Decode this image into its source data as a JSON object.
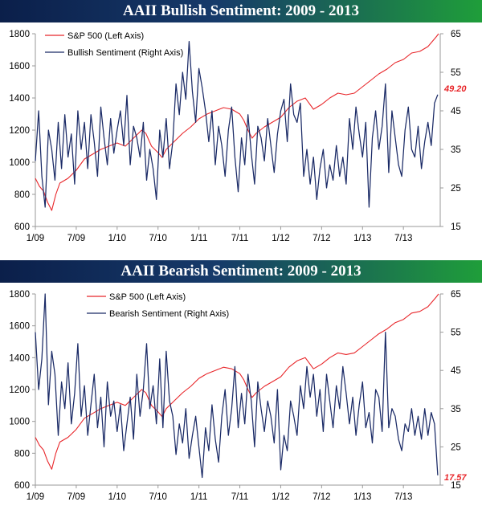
{
  "colors": {
    "banner_left": "#0b1f4a",
    "banner_right": "#1f9e3a",
    "sp500": "#e8262a",
    "sentiment": "#1a2a66",
    "axis": "#999999"
  },
  "chart_data": [
    {
      "type": "line",
      "title": "AAII Bullish Sentiment: 2009 - 2013",
      "x_tick_labels": [
        "1/09",
        "7/09",
        "1/10",
        "7/10",
        "1/11",
        "7/11",
        "1/12",
        "7/12",
        "1/13",
        "7/13"
      ],
      "y_left_ticks": [
        600,
        800,
        1000,
        1200,
        1400,
        1600,
        1800
      ],
      "y_right_ticks": [
        15,
        25,
        35,
        45,
        55,
        65
      ],
      "y_left_range": [
        600,
        1800
      ],
      "y_right_range": [
        15,
        65
      ],
      "x_range": [
        2009.0,
        2013.95
      ],
      "legend_position": "top-left",
      "grid": false,
      "end_label": "49.20",
      "series": [
        {
          "name": "S&P 500 (Left Axis)",
          "axis": "left",
          "color": "#e8262a",
          "x": [
            2009.0,
            2009.05,
            2009.1,
            2009.15,
            2009.2,
            2009.25,
            2009.3,
            2009.4,
            2009.5,
            2009.6,
            2009.7,
            2009.8,
            2009.9,
            2010.0,
            2010.1,
            2010.2,
            2010.3,
            2010.35,
            2010.42,
            2010.5,
            2010.55,
            2010.6,
            2010.7,
            2010.8,
            2010.9,
            2011.0,
            2011.1,
            2011.2,
            2011.3,
            2011.4,
            2011.5,
            2011.55,
            2011.6,
            2011.65,
            2011.7,
            2011.8,
            2011.9,
            2012.0,
            2012.1,
            2012.2,
            2012.3,
            2012.4,
            2012.5,
            2012.6,
            2012.7,
            2012.8,
            2012.9,
            2013.0,
            2013.1,
            2013.2,
            2013.3,
            2013.4,
            2013.5,
            2013.6,
            2013.7,
            2013.8,
            2013.9,
            2013.93
          ],
          "values": [
            900,
            850,
            820,
            750,
            700,
            800,
            870,
            900,
            950,
            1020,
            1050,
            1080,
            1100,
            1120,
            1100,
            1150,
            1200,
            1180,
            1100,
            1060,
            1030,
            1080,
            1130,
            1180,
            1220,
            1270,
            1300,
            1320,
            1340,
            1330,
            1300,
            1260,
            1200,
            1150,
            1180,
            1220,
            1250,
            1280,
            1340,
            1380,
            1400,
            1330,
            1360,
            1400,
            1430,
            1420,
            1430,
            1470,
            1510,
            1550,
            1580,
            1620,
            1640,
            1680,
            1690,
            1720,
            1780,
            1800
          ]
        },
        {
          "name": "Bullish Sentiment (Right Axis)",
          "axis": "right",
          "color": "#1a2a66",
          "x": [
            2009.0,
            2009.04,
            2009.08,
            2009.12,
            2009.16,
            2009.2,
            2009.24,
            2009.28,
            2009.32,
            2009.36,
            2009.4,
            2009.44,
            2009.48,
            2009.52,
            2009.56,
            2009.6,
            2009.64,
            2009.68,
            2009.72,
            2009.76,
            2009.8,
            2009.84,
            2009.88,
            2009.92,
            2009.96,
            2010.0,
            2010.04,
            2010.08,
            2010.12,
            2010.16,
            2010.2,
            2010.24,
            2010.28,
            2010.32,
            2010.36,
            2010.4,
            2010.44,
            2010.48,
            2010.52,
            2010.56,
            2010.6,
            2010.64,
            2010.68,
            2010.72,
            2010.76,
            2010.8,
            2010.84,
            2010.88,
            2010.92,
            2010.96,
            2011.0,
            2011.04,
            2011.08,
            2011.12,
            2011.16,
            2011.2,
            2011.24,
            2011.28,
            2011.32,
            2011.36,
            2011.4,
            2011.44,
            2011.48,
            2011.52,
            2011.56,
            2011.6,
            2011.64,
            2011.68,
            2011.72,
            2011.76,
            2011.8,
            2011.84,
            2011.88,
            2011.92,
            2011.96,
            2012.0,
            2012.04,
            2012.08,
            2012.12,
            2012.16,
            2012.2,
            2012.24,
            2012.28,
            2012.32,
            2012.36,
            2012.4,
            2012.44,
            2012.48,
            2012.52,
            2012.56,
            2012.6,
            2012.64,
            2012.68,
            2012.72,
            2012.76,
            2012.8,
            2012.84,
            2012.88,
            2012.92,
            2012.96,
            2013.0,
            2013.04,
            2013.08,
            2013.12,
            2013.16,
            2013.2,
            2013.24,
            2013.28,
            2013.32,
            2013.36,
            2013.4,
            2013.44,
            2013.48,
            2013.52,
            2013.56,
            2013.6,
            2013.64,
            2013.68,
            2013.72,
            2013.76,
            2013.8,
            2013.84,
            2013.88,
            2013.92
          ],
          "values": [
            32,
            45,
            28,
            20,
            40,
            35,
            27,
            42,
            30,
            44,
            33,
            39,
            26,
            45,
            35,
            42,
            30,
            44,
            37,
            28,
            46,
            38,
            31,
            43,
            34,
            40,
            45,
            36,
            49,
            31,
            41,
            38,
            33,
            42,
            27,
            35,
            30,
            22,
            40,
            33,
            43,
            30,
            37,
            52,
            44,
            55,
            48,
            63,
            50,
            42,
            56,
            51,
            45,
            37,
            45,
            31,
            41,
            36,
            28,
            40,
            46,
            33,
            24,
            38,
            31,
            44,
            34,
            26,
            41,
            38,
            32,
            43,
            36,
            29,
            39,
            45,
            48,
            37,
            52,
            44,
            42,
            47,
            28,
            35,
            26,
            33,
            22,
            30,
            35,
            25,
            31,
            27,
            36,
            28,
            33,
            26,
            43,
            35,
            46,
            39,
            33,
            42,
            20,
            38,
            45,
            35,
            41,
            52,
            29,
            45,
            38,
            31,
            28,
            40,
            46,
            35,
            33,
            41,
            30,
            37,
            42,
            36,
            47,
            49.2
          ]
        }
      ]
    },
    {
      "type": "line",
      "title": "AAII Bearish Sentiment: 2009 - 2013",
      "x_tick_labels": [
        "1/09",
        "7/09",
        "1/10",
        "7/10",
        "1/11",
        "7/11",
        "1/12",
        "7/12",
        "1/13",
        "7/13"
      ],
      "y_left_ticks": [
        600,
        800,
        1000,
        1200,
        1400,
        1600,
        1800
      ],
      "y_right_ticks": [
        15,
        25,
        35,
        45,
        55,
        65
      ],
      "y_left_range": [
        600,
        1800
      ],
      "y_right_range": [
        15,
        65
      ],
      "x_range": [
        2009.0,
        2013.95
      ],
      "legend_position": "top-center",
      "grid": false,
      "end_label": "17.57",
      "series": [
        {
          "name": "S&P 500 (Left Axis)",
          "axis": "left",
          "color": "#e8262a",
          "x": [
            2009.0,
            2009.05,
            2009.1,
            2009.15,
            2009.2,
            2009.25,
            2009.3,
            2009.4,
            2009.5,
            2009.6,
            2009.7,
            2009.8,
            2009.9,
            2010.0,
            2010.1,
            2010.2,
            2010.3,
            2010.35,
            2010.42,
            2010.5,
            2010.55,
            2010.6,
            2010.7,
            2010.8,
            2010.9,
            2011.0,
            2011.1,
            2011.2,
            2011.3,
            2011.4,
            2011.5,
            2011.55,
            2011.6,
            2011.65,
            2011.7,
            2011.8,
            2011.9,
            2012.0,
            2012.1,
            2012.2,
            2012.3,
            2012.4,
            2012.5,
            2012.6,
            2012.7,
            2012.8,
            2012.9,
            2013.0,
            2013.1,
            2013.2,
            2013.3,
            2013.4,
            2013.5,
            2013.6,
            2013.7,
            2013.8,
            2013.9,
            2013.93
          ],
          "values": [
            900,
            850,
            820,
            750,
            700,
            800,
            870,
            900,
            950,
            1020,
            1050,
            1080,
            1100,
            1120,
            1100,
            1150,
            1200,
            1180,
            1100,
            1060,
            1030,
            1080,
            1130,
            1180,
            1220,
            1270,
            1300,
            1320,
            1340,
            1330,
            1300,
            1260,
            1200,
            1150,
            1180,
            1220,
            1250,
            1280,
            1340,
            1380,
            1400,
            1330,
            1360,
            1400,
            1430,
            1420,
            1430,
            1470,
            1510,
            1550,
            1580,
            1620,
            1640,
            1680,
            1690,
            1720,
            1780,
            1800
          ]
        },
        {
          "name": "Bearish Sentiment (Right Axis)",
          "axis": "right",
          "color": "#1a2a66",
          "x": [
            2009.0,
            2009.04,
            2009.08,
            2009.12,
            2009.16,
            2009.2,
            2009.24,
            2009.28,
            2009.32,
            2009.36,
            2009.4,
            2009.44,
            2009.48,
            2009.52,
            2009.56,
            2009.6,
            2009.64,
            2009.68,
            2009.72,
            2009.76,
            2009.8,
            2009.84,
            2009.88,
            2009.92,
            2009.96,
            2010.0,
            2010.04,
            2010.08,
            2010.12,
            2010.16,
            2010.2,
            2010.24,
            2010.28,
            2010.32,
            2010.36,
            2010.4,
            2010.44,
            2010.48,
            2010.52,
            2010.56,
            2010.6,
            2010.64,
            2010.68,
            2010.72,
            2010.76,
            2010.8,
            2010.84,
            2010.88,
            2010.92,
            2010.96,
            2011.0,
            2011.04,
            2011.08,
            2011.12,
            2011.16,
            2011.2,
            2011.24,
            2011.28,
            2011.32,
            2011.36,
            2011.4,
            2011.44,
            2011.48,
            2011.52,
            2011.56,
            2011.6,
            2011.64,
            2011.68,
            2011.72,
            2011.76,
            2011.8,
            2011.84,
            2011.88,
            2011.92,
            2011.96,
            2012.0,
            2012.04,
            2012.08,
            2012.12,
            2012.16,
            2012.2,
            2012.24,
            2012.28,
            2012.32,
            2012.36,
            2012.4,
            2012.44,
            2012.48,
            2012.52,
            2012.56,
            2012.6,
            2012.64,
            2012.68,
            2012.72,
            2012.76,
            2012.8,
            2012.84,
            2012.88,
            2012.92,
            2012.96,
            2013.0,
            2013.04,
            2013.08,
            2013.12,
            2013.16,
            2013.2,
            2013.24,
            2013.28,
            2013.32,
            2013.36,
            2013.4,
            2013.44,
            2013.48,
            2013.52,
            2013.56,
            2013.6,
            2013.64,
            2013.68,
            2013.72,
            2013.76,
            2013.8,
            2013.84,
            2013.88,
            2013.92
          ],
          "values": [
            55,
            40,
            48,
            65,
            36,
            50,
            44,
            28,
            42,
            35,
            47,
            31,
            39,
            52,
            33,
            41,
            28,
            36,
            44,
            30,
            38,
            25,
            42,
            33,
            37,
            29,
            36,
            24,
            31,
            38,
            27,
            44,
            33,
            40,
            52,
            35,
            41,
            31,
            48,
            30,
            50,
            37,
            33,
            23,
            31,
            26,
            35,
            22,
            28,
            33,
            25,
            17,
            30,
            24,
            36,
            27,
            21,
            33,
            40,
            28,
            35,
            46,
            30,
            39,
            31,
            44,
            37,
            25,
            42,
            35,
            29,
            37,
            33,
            26,
            40,
            19,
            28,
            24,
            37,
            33,
            28,
            41,
            35,
            46,
            38,
            44,
            33,
            40,
            29,
            44,
            37,
            30,
            41,
            35,
            46,
            39,
            31,
            38,
            28,
            36,
            42,
            30,
            34,
            26,
            40,
            38,
            29,
            55,
            30,
            35,
            33,
            27,
            24,
            31,
            29,
            35,
            28,
            33,
            27,
            35,
            28,
            34,
            31,
            17.57
          ]
        }
      ]
    }
  ]
}
